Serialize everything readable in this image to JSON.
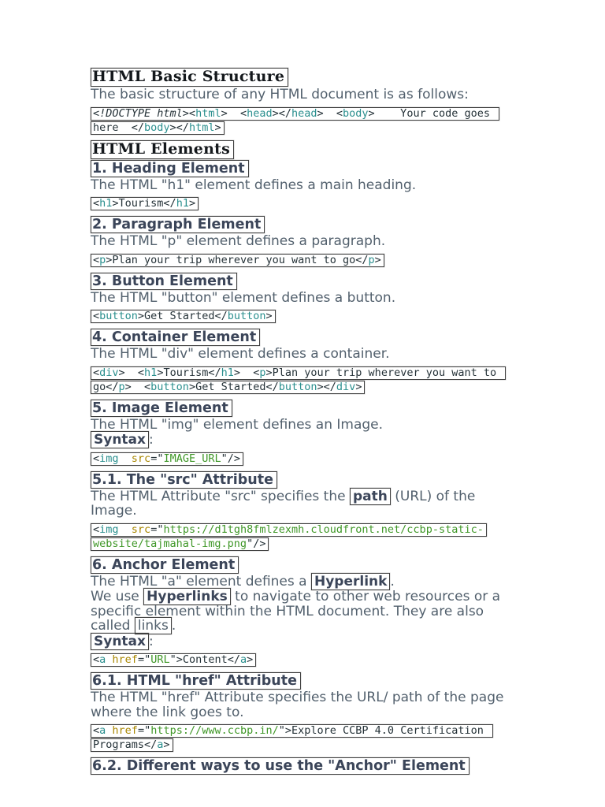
{
  "colors": {
    "page_bg": "#ffffff",
    "box_border": "#3f3f3f",
    "title_color": "#14181c",
    "heading_color": "#3b4559",
    "body_color": "#52606d",
    "code_plain": "#243137",
    "code_tag": "#2a8f8e",
    "code_attr": "#a98700",
    "code_val": "#3f9727"
  },
  "content": {
    "sections": [
      {
        "type": "title",
        "text": "HTML Basic Structure"
      },
      {
        "type": "para",
        "runs": [
          {
            "t": "The basic structure of any HTML document is as follows:"
          }
        ]
      },
      {
        "type": "code",
        "lines": [
          [
            {
              "c": "doc",
              "t": "<!DOCTYPE html>"
            },
            {
              "c": "pln",
              "t": "<"
            },
            {
              "c": "tag",
              "t": "html"
            },
            {
              "c": "pln",
              "t": ">  <"
            },
            {
              "c": "tag",
              "t": "head"
            },
            {
              "c": "pln",
              "t": "></"
            },
            {
              "c": "tag",
              "t": "head"
            },
            {
              "c": "pln",
              "t": ">  <"
            },
            {
              "c": "tag",
              "t": "body"
            },
            {
              "c": "pln",
              "t": ">    Your code goes "
            }
          ],
          [
            {
              "c": "pln",
              "t": "here  </"
            },
            {
              "c": "tag",
              "t": "body"
            },
            {
              "c": "pln",
              "t": "></"
            },
            {
              "c": "tag",
              "t": "html"
            },
            {
              "c": "pln",
              "t": ">"
            }
          ]
        ]
      },
      {
        "type": "title",
        "text": "HTML Elements"
      },
      {
        "type": "heading",
        "text": "1. Heading Element"
      },
      {
        "type": "para",
        "runs": [
          {
            "t": "The HTML \"h1\" element defines a main heading."
          }
        ]
      },
      {
        "type": "code",
        "lines": [
          [
            {
              "c": "pln",
              "t": "<"
            },
            {
              "c": "tag",
              "t": "h1"
            },
            {
              "c": "pln",
              "t": ">Tourism</"
            },
            {
              "c": "tag",
              "t": "h1"
            },
            {
              "c": "pln",
              "t": ">"
            }
          ]
        ]
      },
      {
        "type": "heading",
        "text": "2. Paragraph Element"
      },
      {
        "type": "para",
        "runs": [
          {
            "t": "The HTML \"p\" element defines a paragraph."
          }
        ]
      },
      {
        "type": "code",
        "lines": [
          [
            {
              "c": "pln",
              "t": "<"
            },
            {
              "c": "tag",
              "t": "p"
            },
            {
              "c": "pln",
              "t": ">Plan your trip wherever you want to go</"
            },
            {
              "c": "tag",
              "t": "p"
            },
            {
              "c": "pln",
              "t": ">"
            }
          ]
        ]
      },
      {
        "type": "heading",
        "text": "3. Button Element"
      },
      {
        "type": "para",
        "runs": [
          {
            "t": "The HTML \"button\" element defines a button."
          }
        ]
      },
      {
        "type": "code",
        "lines": [
          [
            {
              "c": "pln",
              "t": "<"
            },
            {
              "c": "tag",
              "t": "button"
            },
            {
              "c": "pln",
              "t": ">Get Started</"
            },
            {
              "c": "tag",
              "t": "button"
            },
            {
              "c": "pln",
              "t": ">"
            }
          ]
        ]
      },
      {
        "type": "heading",
        "text": "4. Container Element"
      },
      {
        "type": "para",
        "runs": [
          {
            "t": "The HTML \"div\" element defines a container."
          }
        ]
      },
      {
        "type": "code",
        "lines": [
          [
            {
              "c": "pln",
              "t": "<"
            },
            {
              "c": "tag",
              "t": "div"
            },
            {
              "c": "pln",
              "t": ">  <"
            },
            {
              "c": "tag",
              "t": "h1"
            },
            {
              "c": "pln",
              "t": ">Tourism</"
            },
            {
              "c": "tag",
              "t": "h1"
            },
            {
              "c": "pln",
              "t": ">  <"
            },
            {
              "c": "tag",
              "t": "p"
            },
            {
              "c": "pln",
              "t": ">Plan your trip wherever you want to "
            }
          ],
          [
            {
              "c": "pln",
              "t": "go</"
            },
            {
              "c": "tag",
              "t": "p"
            },
            {
              "c": "pln",
              "t": ">  <"
            },
            {
              "c": "tag",
              "t": "button"
            },
            {
              "c": "pln",
              "t": ">Get Started</"
            },
            {
              "c": "tag",
              "t": "button"
            },
            {
              "c": "pln",
              "t": "></"
            },
            {
              "c": "tag",
              "t": "div"
            },
            {
              "c": "pln",
              "t": ">"
            }
          ]
        ]
      },
      {
        "type": "heading",
        "text": "5. Image Element"
      },
      {
        "type": "para",
        "runs": [
          {
            "t": "The HTML \"img\" element defines an Image."
          }
        ]
      },
      {
        "type": "para",
        "runs": [
          {
            "t": "Syntax",
            "bold": true,
            "box": true
          },
          {
            "t": ":"
          }
        ]
      },
      {
        "type": "code",
        "lines": [
          [
            {
              "c": "pln",
              "t": "<"
            },
            {
              "c": "tag",
              "t": "img"
            },
            {
              "c": "pln",
              "t": "  "
            },
            {
              "c": "attr",
              "t": "src"
            },
            {
              "c": "pln",
              "t": "=\""
            },
            {
              "c": "val",
              "t": "IMAGE_URL"
            },
            {
              "c": "pln",
              "t": "\"/>"
            }
          ]
        ]
      },
      {
        "type": "heading",
        "text": "5.1. The \"src\" Attribute"
      },
      {
        "type": "para",
        "runs": [
          {
            "t": "The HTML Attribute \"src\" specifies the "
          },
          {
            "t": "path",
            "bold": true,
            "box": true
          },
          {
            "t": " (URL) of the Image."
          }
        ]
      },
      {
        "type": "code",
        "lines": [
          [
            {
              "c": "pln",
              "t": "<"
            },
            {
              "c": "tag",
              "t": "img"
            },
            {
              "c": "pln",
              "t": "  "
            },
            {
              "c": "attr",
              "t": "src"
            },
            {
              "c": "pln",
              "t": "=\""
            },
            {
              "c": "val",
              "t": "https://d1tgh8fmlzexmh.cloudfront.net/ccbp-static-"
            }
          ],
          [
            {
              "c": "val",
              "t": "website/tajmahal-img.png"
            },
            {
              "c": "pln",
              "t": "\"/>"
            }
          ]
        ]
      },
      {
        "type": "heading",
        "text": "6. Anchor Element"
      },
      {
        "type": "para",
        "runs": [
          {
            "t": "The HTML \"a\" element defines a "
          },
          {
            "t": "Hyperlink",
            "bold": true,
            "box": true
          },
          {
            "t": "."
          }
        ]
      },
      {
        "type": "para",
        "runs": [
          {
            "t": "We use "
          },
          {
            "t": "Hyperlinks",
            "bold": true,
            "box": true
          },
          {
            "t": " to navigate to other web resources or a specific element within the HTML document. They are also called "
          },
          {
            "t": "links",
            "box": true
          },
          {
            "t": "."
          }
        ]
      },
      {
        "type": "para",
        "runs": [
          {
            "t": "Syntax",
            "bold": true,
            "box": true
          },
          {
            "t": ":"
          }
        ]
      },
      {
        "type": "code",
        "lines": [
          [
            {
              "c": "pln",
              "t": "<"
            },
            {
              "c": "tag",
              "t": "a"
            },
            {
              "c": "pln",
              "t": " "
            },
            {
              "c": "attr",
              "t": "href"
            },
            {
              "c": "pln",
              "t": "=\""
            },
            {
              "c": "val",
              "t": "URL"
            },
            {
              "c": "pln",
              "t": "\">Content</"
            },
            {
              "c": "tag",
              "t": "a"
            },
            {
              "c": "pln",
              "t": ">"
            }
          ]
        ]
      },
      {
        "type": "heading",
        "text": "6.1. HTML \"href\" Attribute"
      },
      {
        "type": "para",
        "runs": [
          {
            "t": "The HTML \"href\" Attribute specifies the URL/ path of the page where the link goes to."
          }
        ]
      },
      {
        "type": "code",
        "lines": [
          [
            {
              "c": "pln",
              "t": "<"
            },
            {
              "c": "tag",
              "t": "a"
            },
            {
              "c": "pln",
              "t": " "
            },
            {
              "c": "attr",
              "t": "href"
            },
            {
              "c": "pln",
              "t": "=\""
            },
            {
              "c": "val",
              "t": "https://www.ccbp.in/"
            },
            {
              "c": "pln",
              "t": "\">Explore CCBP 4.0 Certification "
            }
          ],
          [
            {
              "c": "pln",
              "t": "Programs</"
            },
            {
              "c": "tag",
              "t": "a"
            },
            {
              "c": "pln",
              "t": ">"
            }
          ]
        ]
      },
      {
        "type": "heading",
        "text": "6.2. Different ways to use the \"Anchor\" Element"
      }
    ]
  }
}
